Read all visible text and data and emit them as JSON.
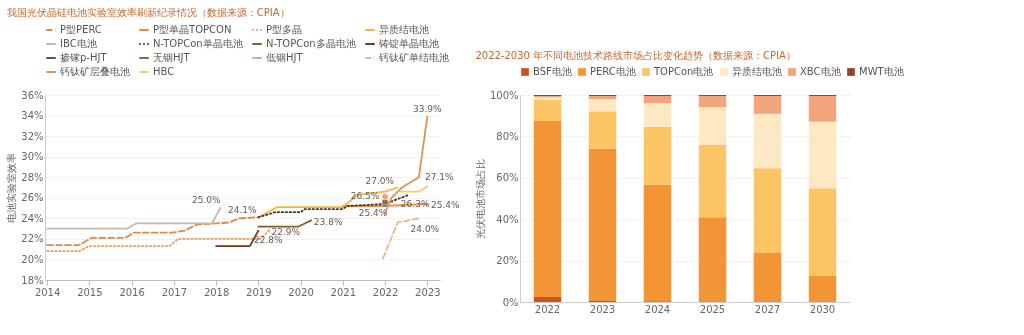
{
  "chart_data": [
    {
      "type": "line",
      "title": "我国光伏晶硅电池实验室效率刷新纪录情况（数据来源：CPIA）",
      "ylabel": "电池实验室效率",
      "xlim": [
        2013.95,
        2023.3
      ],
      "xticks": [
        2014,
        2015,
        2016,
        2017,
        2018,
        2019,
        2020,
        2021,
        2022,
        2023
      ],
      "ylim": [
        18,
        36
      ],
      "yticks": [
        {
          "value": 18,
          "label": "18%"
        },
        {
          "value": 20,
          "label": "20%"
        },
        {
          "value": 22,
          "label": "22%"
        },
        {
          "value": 24,
          "label": "24%"
        },
        {
          "value": 26,
          "label": "26%"
        },
        {
          "value": 28,
          "label": "28%"
        },
        {
          "value": 30,
          "label": "30%"
        },
        {
          "value": 32,
          "label": "32%"
        },
        {
          "value": 34,
          "label": "34%"
        },
        {
          "value": 36,
          "label": "36%"
        }
      ],
      "grid": "y",
      "legend": "top",
      "series": [
        {
          "name": "P型PERC",
          "color": "#e4873e",
          "line_style": "dashed",
          "x": [
            2014,
            2014.75,
            2015.05,
            2015.85,
            2016.05,
            2016.95,
            2017.25,
            2017.55,
            2018.0,
            2018.3,
            2018.55,
            2019.0
          ],
          "values": [
            21.4,
            21.4,
            22.1,
            22.1,
            22.6,
            22.6,
            22.8,
            23.4,
            23.5,
            23.6,
            24.0,
            24.1
          ]
        },
        {
          "name": "P型单晶TOPCON",
          "color": "#f08a40",
          "x": [
            2021.0,
            2022.0,
            2023.0
          ],
          "values": [
            25.2,
            25.2,
            25.4
          ]
        },
        {
          "name": "P型多晶",
          "color": "#eca060",
          "line_style": "dotted",
          "x": [
            2014,
            2014.75,
            2015.0,
            2016.9,
            2017.1,
            2019.05,
            2019.27
          ],
          "values": [
            20.8,
            20.8,
            21.3,
            21.3,
            22.0,
            22.0,
            22.9
          ]
        },
        {
          "name": "异质结电池",
          "color": "#f5b82e",
          "x": [
            2019.0,
            2019.45,
            2021.0,
            2021.35,
            2022.0,
            2022.3
          ],
          "values": [
            24.1,
            25.1,
            25.1,
            26.3,
            26.6,
            27.0
          ]
        },
        {
          "name": "IBC电池",
          "color": "#c4b9ae",
          "x": [
            2014,
            2015.9,
            2016.1,
            2017.9,
            2018.1
          ],
          "values": [
            23.0,
            23.0,
            23.5,
            23.5,
            25.0
          ]
        },
        {
          "name": "N-TOPCon单晶电池",
          "color": "#4a3424",
          "line_style": "dotted",
          "x": [
            2019.0,
            2019.4,
            2020.0,
            2020.1,
            2021.0,
            2021.1,
            2022.0,
            2022.57
          ],
          "values": [
            24.1,
            24.6,
            24.6,
            24.9,
            24.9,
            25.2,
            25.4,
            26.3
          ]
        },
        {
          "name": "N-TOPCon多晶电池",
          "color": "#8a5a2a",
          "x": [
            2019.0,
            2019.95,
            2020.1,
            2020.25
          ],
          "values": [
            23.2,
            23.2,
            23.5,
            23.8
          ]
        },
        {
          "name": "铸锭单晶电池",
          "color": "#7a3418",
          "x": [
            2018.0,
            2018.8,
            2019.0
          ],
          "values": [
            21.3,
            21.3,
            22.8
          ]
        },
        {
          "name": "掺镓p-HJT",
          "type": "scatter",
          "color": "#555555",
          "x": [
            2022.0
          ],
          "values": [
            25.4
          ]
        },
        {
          "name": "无铟HJT",
          "type": "scatter",
          "color": "#8a6a3a",
          "x": [
            2022.0
          ],
          "values": [
            25.6
          ]
        },
        {
          "name": "低铟HJT",
          "type": "scatter",
          "color": "#f0a080",
          "x": [
            2022.0
          ],
          "values": [
            26.1
          ]
        },
        {
          "name": "钙钛矿单结电池",
          "color": "#e8b888",
          "line_style": "dashed",
          "x": [
            2021.95,
            2022.3,
            2022.8
          ],
          "values": [
            20.1,
            23.6,
            24.0
          ]
        },
        {
          "name": "钙钛矿层叠电池",
          "color": "#e0905a",
          "x": [
            2022.0,
            2022.15,
            2022.4,
            2022.8,
            2023.0
          ],
          "values": [
            24.5,
            26.0,
            27.0,
            28.0,
            33.9
          ]
        },
        {
          "name": "HBC",
          "color": "#f6cc78",
          "x": [
            2022.35,
            2022.8,
            2023.0
          ],
          "values": [
            26.6,
            26.6,
            27.1
          ]
        }
      ],
      "annotations": [
        {
          "text": "25.0%",
          "x": 2018.1,
          "y": 25.0
        },
        {
          "text": "24.1%",
          "x": 2019.0,
          "y": 24.1
        },
        {
          "text": "22.8%",
          "x": 2019.0,
          "y": 22.8
        },
        {
          "text": "22.9%",
          "x": 2019.27,
          "y": 22.9
        },
        {
          "text": "23.8%",
          "x": 2020.25,
          "y": 23.8
        },
        {
          "text": "27.0%",
          "x": 2022.3,
          "y": 27.0
        },
        {
          "text": "26.5%",
          "x": 2022.0,
          "y": 26.1
        },
        {
          "text": "25.4%",
          "x": 2022.0,
          "y": 25.4
        },
        {
          "text": "26.3%",
          "x": 2022.57,
          "y": 26.3
        },
        {
          "text": "25.4%",
          "x": 2023.0,
          "y": 25.4
        },
        {
          "text": "27.1%",
          "x": 2023.0,
          "y": 27.1
        },
        {
          "text": "33.9%",
          "x": 2023.0,
          "y": 33.9
        },
        {
          "text": "24.0%",
          "x": 2022.8,
          "y": 24.0
        }
      ]
    },
    {
      "type": "bar",
      "stacked": true,
      "title": "2022-2030 年不同电池技术路线市场占比变化趋势（数据来源：CPIA）",
      "ylabel": "光伏电池市场占比",
      "categories": [
        "2022",
        "2023",
        "2024",
        "2025",
        "2027",
        "2030"
      ],
      "ylim": [
        0,
        100
      ],
      "yticks": [
        {
          "value": 0,
          "label": "0%"
        },
        {
          "value": 20,
          "label": "20%"
        },
        {
          "value": 40,
          "label": "40%"
        },
        {
          "value": 60,
          "label": "60%"
        },
        {
          "value": 80,
          "label": "80%"
        },
        {
          "value": 100,
          "label": "100%"
        }
      ],
      "grid": "y",
      "legend": "top",
      "series": [
        {
          "name": "BSF电池",
          "color": "#c8561e",
          "values": [
            2.4,
            0.5,
            0.4,
            0,
            0,
            0
          ]
        },
        {
          "name": "PERC电池",
          "color": "#f39437",
          "values": [
            85.0,
            73.5,
            56.3,
            41.0,
            23.7,
            12.7
          ]
        },
        {
          "name": "TOPCon电池",
          "color": "#fbc465",
          "values": [
            10.4,
            18.1,
            27.9,
            34.9,
            40.9,
            42.2
          ]
        },
        {
          "name": "异质结电池",
          "color": "#fde8c4",
          "values": [
            1.2,
            5.9,
            11.4,
            18.2,
            26.3,
            32.2
          ]
        },
        {
          "name": "XBC电池",
          "color": "#f2a47c",
          "values": [
            0.5,
            1.5,
            3.5,
            5.4,
            8.6,
            12.4
          ]
        },
        {
          "name": "MWT电池",
          "color": "#8b4a2e",
          "values": [
            0.5,
            0.5,
            0.5,
            0.5,
            0.5,
            0.5
          ]
        }
      ]
    }
  ]
}
